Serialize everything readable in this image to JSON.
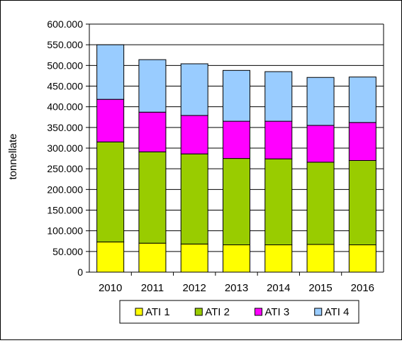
{
  "chart_data": {
    "type": "bar",
    "stacked": true,
    "title": "",
    "xlabel": "",
    "ylabel": "tonnellate",
    "ylim": [
      0,
      600000
    ],
    "ytick_step": 50000,
    "grid": true,
    "legend": "bottom",
    "categories": [
      "2010",
      "2011",
      "2012",
      "2013",
      "2014",
      "2015",
      "2016"
    ],
    "yticks": [
      "0",
      "50.000",
      "100.000",
      "150.000",
      "200.000",
      "250.000",
      "300.000",
      "350.000",
      "400.000",
      "450.000",
      "500.000",
      "550.000",
      "600.000"
    ],
    "series": [
      {
        "name": "ATI 1",
        "color": "#FFFF00",
        "values": [
          73000,
          70000,
          68000,
          66000,
          66000,
          67000,
          66000
        ]
      },
      {
        "name": "ATI 2",
        "color": "#99CC00",
        "values": [
          242000,
          221000,
          218000,
          209000,
          208000,
          199000,
          204000
        ]
      },
      {
        "name": "ATI 3",
        "color": "#FF00FF",
        "values": [
          103000,
          96000,
          93000,
          90000,
          91000,
          89000,
          92000
        ]
      },
      {
        "name": "ATI 4",
        "color": "#99CCFF",
        "values": [
          132000,
          127000,
          125000,
          123000,
          120000,
          116000,
          110000
        ]
      }
    ]
  }
}
